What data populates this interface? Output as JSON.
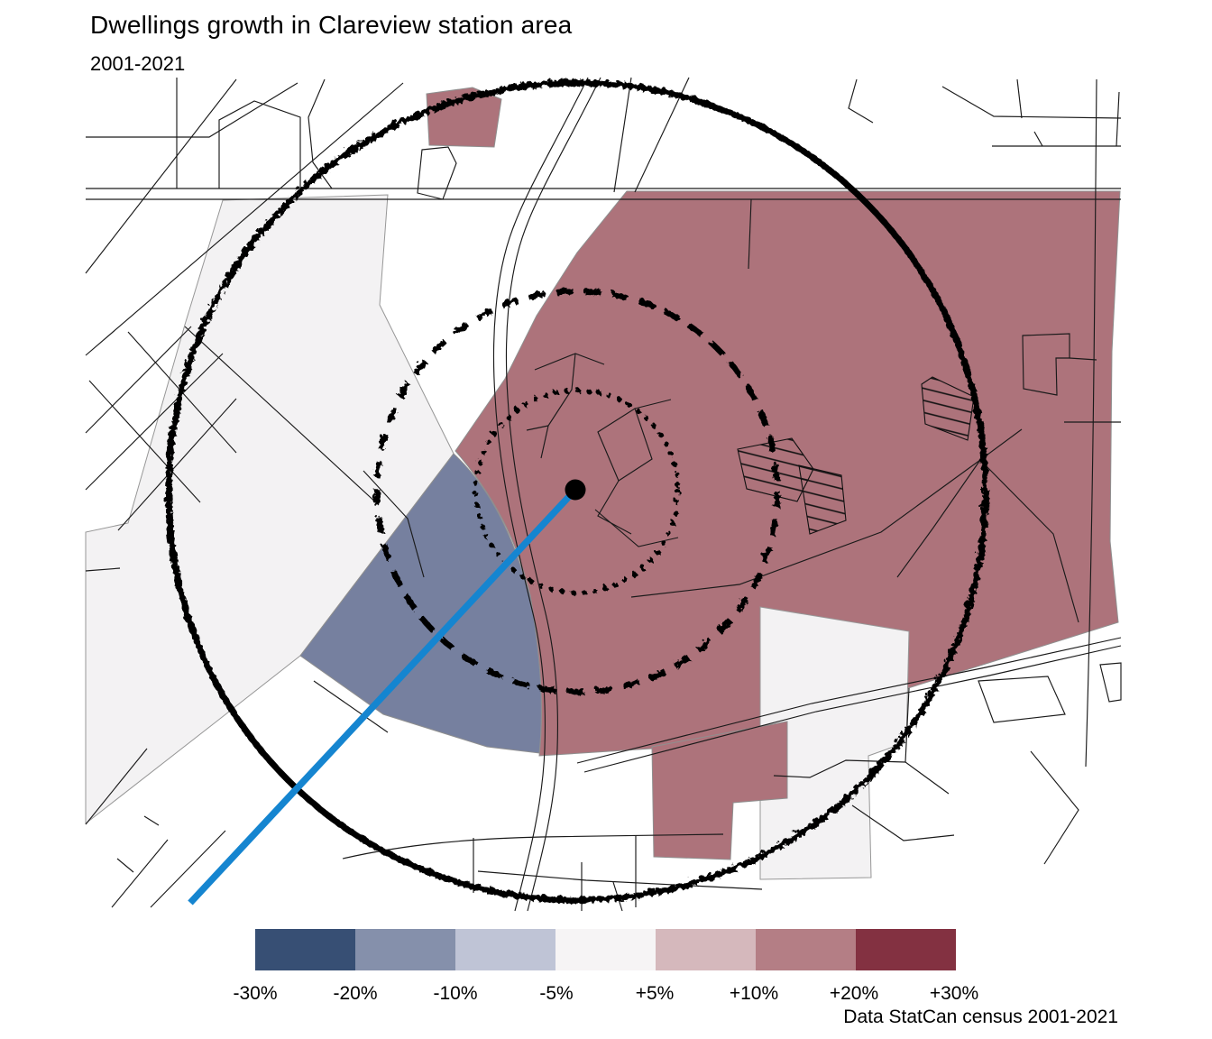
{
  "title": "Dwellings growth in Clareview station area",
  "subtitle": "2001-2021",
  "caption": "Data StatCan census 2001-2021",
  "legend": {
    "labels": [
      "-30%",
      "-20%",
      "-10%",
      "-5%",
      "+5%",
      "+10%",
      "+20%",
      "+30%"
    ],
    "colors": [
      "#374f74",
      "#8590ab",
      "#bfc4d6",
      "#f6f4f5",
      "#d5b8bc",
      "#b47e85",
      "#833141"
    ]
  },
  "map_colors": {
    "growth_region": "#ad737b",
    "decline_region": "#76809f",
    "neutral_tract": "#f3f2f3",
    "lrt_line": "#1585d0",
    "station_dot": "#000000"
  }
}
